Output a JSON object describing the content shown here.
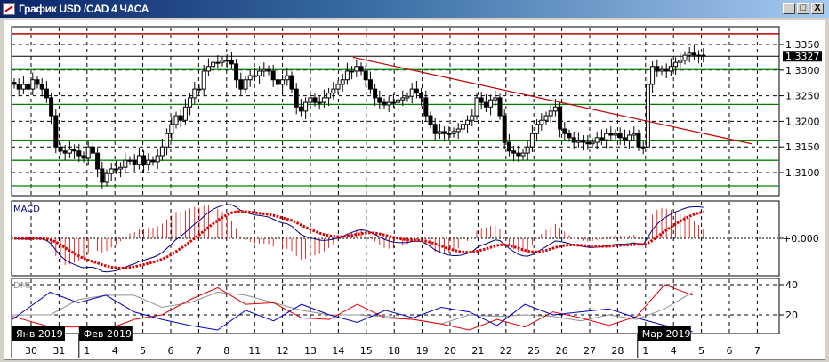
{
  "window": {
    "title": "График USD /CAD  4 ЧАСА",
    "minimize_label": "_",
    "maximize_label": "□",
    "close_label": "X"
  },
  "price_panel": {
    "axis_labels": [
      "1.3350",
      "1.3300",
      "1.3250",
      "1.3200",
      "1.3150",
      "1.3100"
    ],
    "current_price": "1.3327"
  },
  "macd_panel": {
    "label": "MACD",
    "zero_label": "+0.000"
  },
  "dmi_panel": {
    "label": "DMI",
    "axis_labels": [
      "40",
      "20"
    ]
  },
  "time_axis": {
    "days": [
      "30",
      "31",
      "1",
      "4",
      "5",
      "6",
      "7",
      "8",
      "11",
      "12",
      "13",
      "14",
      "15",
      "18",
      "19",
      "20",
      "21",
      "22",
      "25",
      "26",
      "27",
      "28",
      "1",
      "4",
      "5",
      "6",
      "7"
    ],
    "months": [
      {
        "label": "Янв 2019",
        "day_index": 0
      },
      {
        "label": "Фев 2019",
        "day_index": 2
      },
      {
        "label": "Мар 2019",
        "day_index": 22
      }
    ]
  },
  "colors": {
    "up_candle": "#ffffff",
    "down_candle": "#000000",
    "support_lines": "#008000",
    "trend_line": "#c00000",
    "macd_line": "#000080",
    "signal_line": "#e00000",
    "dmi_plus": "#0000c0",
    "dmi_minus": "#e00000",
    "adx": "#909090"
  },
  "chart_data": [
    {
      "type": "candlestick",
      "title": "График USD /CAD  4 ЧАСА",
      "ylim": [
        1.306,
        1.339
      ],
      "closes": [
        1.3272,
        1.3263,
        1.3272,
        1.3263,
        1.3281,
        1.3272,
        1.3263,
        1.3246,
        1.3211,
        1.315,
        1.3142,
        1.3138,
        1.3145,
        1.3142,
        1.3133,
        1.3128,
        1.315,
        1.3138,
        1.3107,
        1.3081,
        1.3098,
        1.3107,
        1.3107,
        1.311,
        1.3124,
        1.3124,
        1.3116,
        1.3133,
        1.3116,
        1.3124,
        1.3121,
        1.3133,
        1.315,
        1.3176,
        1.3194,
        1.3211,
        1.3202,
        1.3228,
        1.3246,
        1.3263,
        1.3263,
        1.3298,
        1.3307,
        1.3315,
        1.3315,
        1.3319,
        1.3319,
        1.3312,
        1.3281,
        1.3263,
        1.3281,
        1.3289,
        1.3289,
        1.3298,
        1.3301,
        1.3298,
        1.3281,
        1.3272,
        1.3281,
        1.3289,
        1.3263,
        1.3228,
        1.322,
        1.3237,
        1.3246,
        1.3237,
        1.3237,
        1.3246,
        1.3255,
        1.3263,
        1.3272,
        1.3281,
        1.3298,
        1.3298,
        1.3307,
        1.3298,
        1.3281,
        1.3263,
        1.3246,
        1.3237,
        1.3232,
        1.3237,
        1.3237,
        1.3242,
        1.3246,
        1.3249,
        1.3263,
        1.3255,
        1.3246,
        1.3211,
        1.3194,
        1.3176,
        1.318,
        1.3176,
        1.3176,
        1.318,
        1.3185,
        1.3194,
        1.3202,
        1.3211,
        1.3246,
        1.3237,
        1.3228,
        1.3242,
        1.3246,
        1.3211,
        1.3159,
        1.3142,
        1.3138,
        1.3133,
        1.3138,
        1.315,
        1.3176,
        1.3194,
        1.3202,
        1.3211,
        1.322,
        1.3228,
        1.3185,
        1.3176,
        1.3168,
        1.3159,
        1.3163,
        1.3159,
        1.3156,
        1.3159,
        1.3168,
        1.3164,
        1.3176,
        1.3173,
        1.3176,
        1.3168,
        1.3163,
        1.3173,
        1.3176,
        1.315,
        1.315,
        1.3272,
        1.3307,
        1.3298,
        1.3301,
        1.3298,
        1.3307,
        1.3315,
        1.3319,
        1.3329,
        1.3333,
        1.3329,
        1.3329,
        1.3327
      ],
      "horizontal_levels": {
        "resistance_red": 1.3371,
        "current_price_line": 1.3327,
        "green": [
          1.3301,
          1.3233,
          1.3163,
          1.3124,
          1.3074
        ]
      },
      "trend_line": {
        "from": {
          "day": "15",
          "price": 1.3325
        },
        "to": {
          "day": "7",
          "price": 1.3156
        }
      },
      "grid": true
    },
    {
      "type": "line",
      "name": "MACD",
      "note_series": [
        "macd",
        "signal",
        "histogram"
      ]
    },
    {
      "type": "line",
      "name": "DMI",
      "ylim": [
        8,
        44
      ],
      "x": [
        "30",
        "31",
        "1",
        "4",
        "5",
        "6",
        "7",
        "8",
        "11",
        "12",
        "13",
        "14",
        "15",
        "18",
        "19",
        "20",
        "21",
        "22",
        "25",
        "26",
        "27",
        "28",
        "1",
        "4",
        "5"
      ],
      "series": [
        {
          "values": [
            17,
            35,
            28,
            33,
            22,
            17,
            13,
            10,
            23,
            16,
            27,
            20,
            15,
            23,
            18,
            25,
            22,
            13,
            27,
            20,
            22,
            24,
            18,
            13,
            9
          ]
        },
        {
          "values": [
            19,
            12,
            12,
            10,
            17,
            20,
            30,
            38,
            27,
            28,
            18,
            17,
            27,
            18,
            17,
            14,
            10,
            17,
            12,
            22,
            18,
            13,
            19,
            40,
            33
          ]
        },
        {
          "values": [
            20,
            20,
            30,
            33,
            33,
            25,
            28,
            35,
            33,
            28,
            23,
            20,
            20,
            19,
            17,
            14,
            20,
            19,
            20,
            19,
            16,
            20,
            17,
            24,
            35
          ]
        }
      ]
    }
  ]
}
